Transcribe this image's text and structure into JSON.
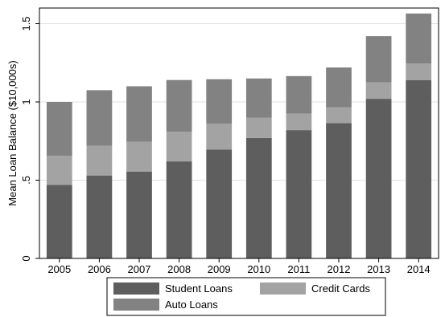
{
  "chart_data": {
    "type": "bar",
    "stacked": true,
    "categories": [
      "2005",
      "2006",
      "2007",
      "2008",
      "2009",
      "2010",
      "2011",
      "2012",
      "2013",
      "2014"
    ],
    "series": [
      {
        "name": "Student Loans",
        "color": "#5e5e5e",
        "values": [
          0.47,
          0.53,
          0.555,
          0.62,
          0.695,
          0.77,
          0.82,
          0.865,
          1.02,
          1.14
        ]
      },
      {
        "name": "Credit Cards",
        "color": "#a3a3a3",
        "values": [
          0.185,
          0.19,
          0.19,
          0.19,
          0.165,
          0.13,
          0.105,
          0.1,
          0.105,
          0.105
        ]
      },
      {
        "name": "Auto Loans",
        "color": "#828282",
        "values": [
          0.345,
          0.355,
          0.355,
          0.33,
          0.285,
          0.25,
          0.24,
          0.255,
          0.295,
          0.32
        ]
      }
    ],
    "title": "",
    "xlabel": "",
    "ylabel": "Mean Loan Balance ($10,000s)",
    "ylim": [
      0,
      1.6
    ],
    "yticks": [
      {
        "value": 0,
        "label": "0"
      },
      {
        "value": 0.5,
        "label": ".5"
      },
      {
        "value": 1,
        "label": "1"
      },
      {
        "value": 1.5,
        "label": "1.5"
      }
    ],
    "grid": true,
    "legend_position": "bottom"
  }
}
